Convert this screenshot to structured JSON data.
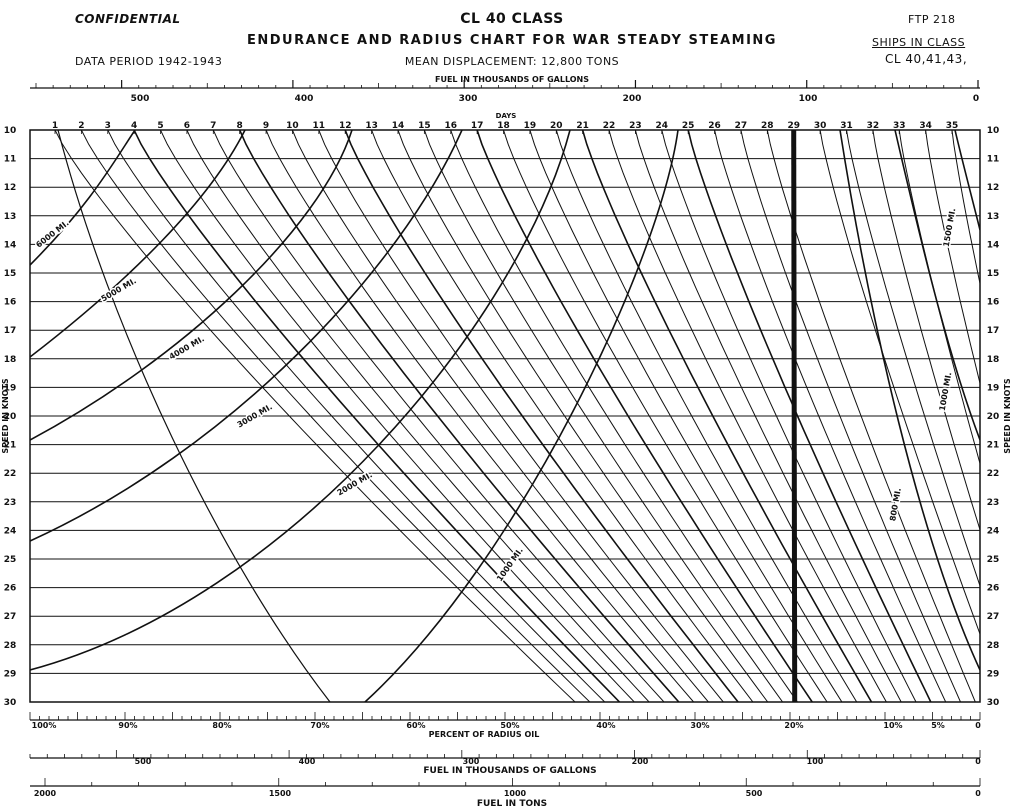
{
  "header": {
    "confidential": "CONFIDENTIAL",
    "title": "CL 40 CLASS",
    "subtitle": "ENDURANCE AND RADIUS CHART FOR WAR STEADY STEAMING",
    "displacement": "MEAN DISPLACEMENT: 12,800 TONS",
    "data_period": "DATA PERIOD 1942-1943",
    "ftp": "FTP 218",
    "ships_in_class": "SHIPS IN CLASS",
    "ship_list": "CL 40,41,43,"
  },
  "chart_data": {
    "type": "line",
    "title": "ENDURANCE AND RADIUS CHART FOR WAR STEADY STEAMING",
    "ylabel": "SPEED IN KNOTS",
    "ylim": [
      10,
      30
    ],
    "y_ticks": [
      "10",
      "11",
      "12",
      "13",
      "14",
      "15",
      "16",
      "17",
      "18",
      "19",
      "20",
      "21",
      "22",
      "23",
      "24",
      "25",
      "26",
      "27",
      "28",
      "29",
      "30"
    ],
    "top_fuel_axis": {
      "label": "FUEL IN THOUSANDS OF GALLONS",
      "range": [
        550,
        0
      ],
      "tick_labels": [
        "500",
        "400",
        "300",
        "200",
        "100",
        "0"
      ]
    },
    "days_axis": {
      "label": "DAYS",
      "tick_labels": [
        "1",
        "2",
        "3",
        "4",
        "5",
        "6",
        "7",
        "8",
        "9",
        "10",
        "11",
        "12",
        "13",
        "14",
        "15",
        "16",
        "17",
        "18",
        "19",
        "20",
        "21",
        "22",
        "23",
        "24",
        "25",
        "26",
        "27",
        "28",
        "29",
        "30",
        "31",
        "32",
        "33",
        "34",
        "35"
      ]
    },
    "percent_axis": {
      "label": "PERCENT OF RADIUS OIL",
      "tick_labels": [
        "100%",
        "90%",
        "80%",
        "70%",
        "60%",
        "50%",
        "40%",
        "30%",
        "20%",
        "10%",
        "5%",
        "0"
      ]
    },
    "bottom_fuel_gallons_axis": {
      "label": "FUEL IN THOUSANDS OF GALLONS",
      "tick_labels": [
        "500",
        "400",
        "300",
        "200",
        "100",
        "0"
      ]
    },
    "bottom_fuel_tons_axis": {
      "label": "FUEL IN TONS",
      "tick_labels": [
        "2000",
        "1500",
        "1000",
        "500",
        "0"
      ]
    },
    "heavy_day_marker": 29,
    "radius_curves": [
      {
        "label": "6000 MI."
      },
      {
        "label": "5000 MI."
      },
      {
        "label": "4000 MI."
      },
      {
        "label": "3000 MI."
      },
      {
        "label": "2000 MI."
      },
      {
        "label": "1000 MI."
      },
      {
        "label": "1500 MI."
      },
      {
        "label": "1000 MI."
      },
      {
        "label": "800 MI."
      }
    ]
  }
}
